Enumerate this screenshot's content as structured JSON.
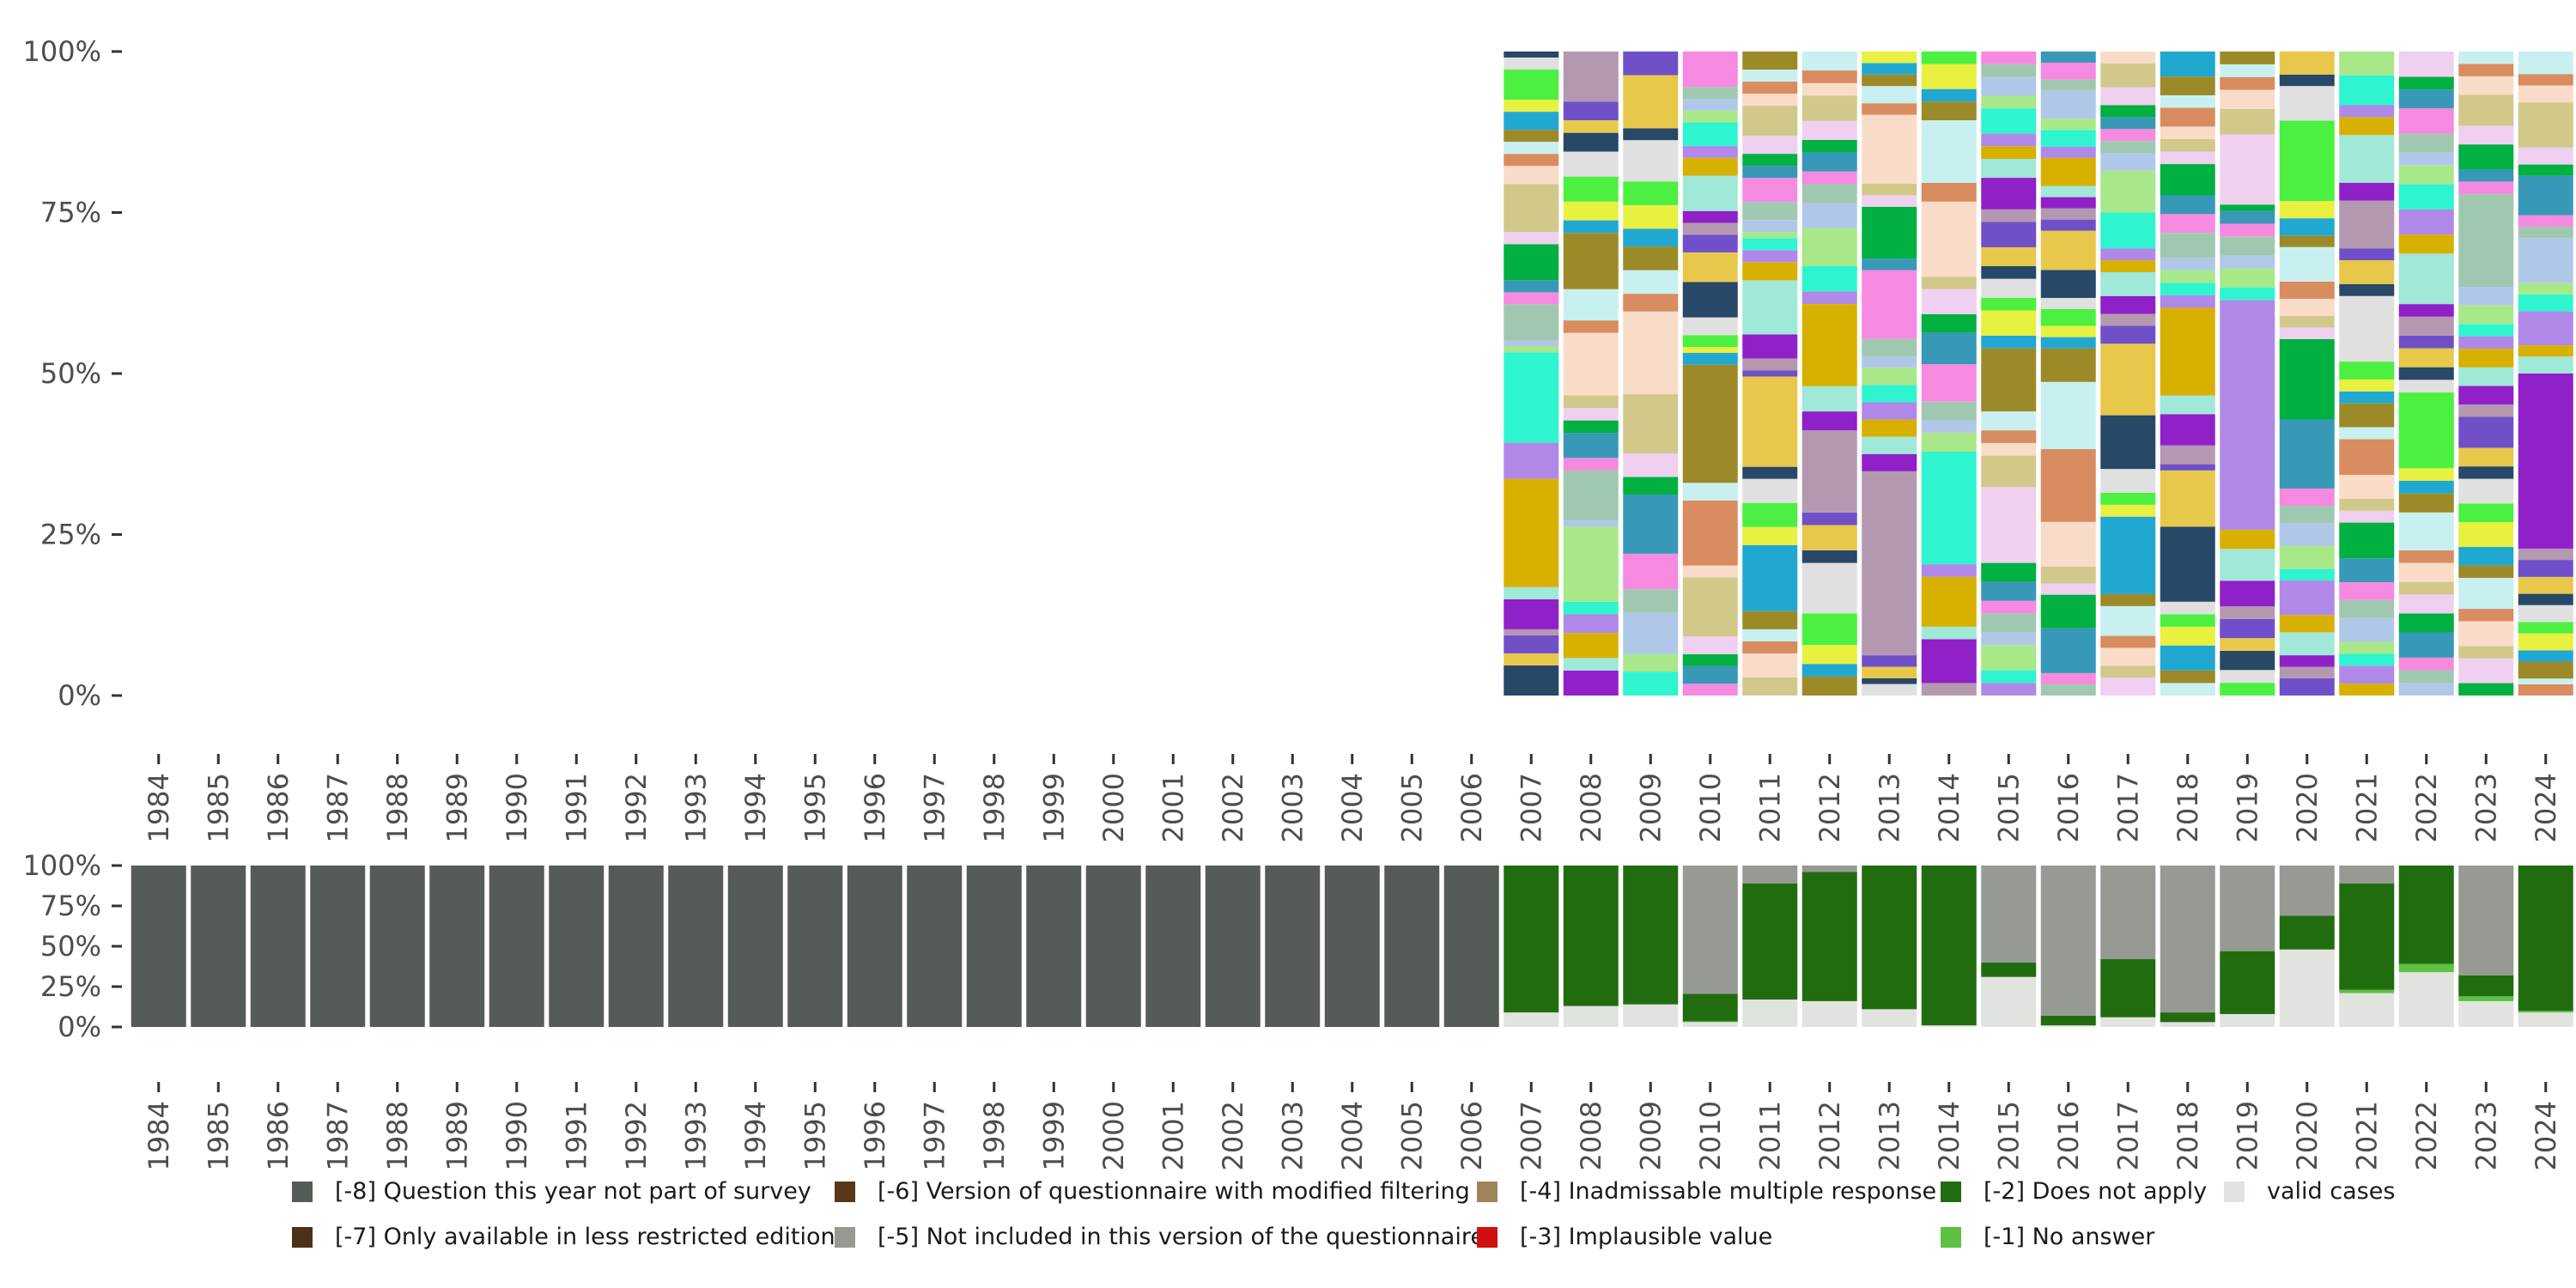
{
  "chart_data": [
    {
      "type": "bar",
      "stacked": true,
      "name": "distribution-of-valid-answers",
      "years": [
        "1984",
        "1985",
        "1986",
        "1987",
        "1988",
        "1989",
        "1990",
        "1991",
        "1992",
        "1993",
        "1994",
        "1995",
        "1996",
        "1997",
        "1998",
        "1999",
        "2000",
        "2001",
        "2002",
        "2003",
        "2004",
        "2005",
        "2006",
        "2007",
        "2008",
        "2009",
        "2010",
        "2011",
        "2012",
        "2013",
        "2014",
        "2015",
        "2016",
        "2017",
        "2018",
        "2019",
        "2020",
        "2021",
        "2022",
        "2023",
        "2024"
      ],
      "ylim": [
        0,
        100
      ],
      "yticks": [
        "0%",
        "25%",
        "50%",
        "75%",
        "100%"
      ],
      "ytick_values": [
        0,
        25,
        50,
        75,
        100
      ],
      "note": "Many answer categories; each year with valid cases is split into numerous small category shares summing to 100%. Years 1984-2006 contain no valid cases.",
      "palette": [
        "#2ef5d0",
        "#e8c84a",
        "#c8f0f0",
        "#f58ae0",
        "#a0e8d8",
        "#4cf040",
        "#d2c88a",
        "#a8e888",
        "#7050c8",
        "#9c8a28",
        "#3898b8",
        "#d8b000",
        "#e0e0e0",
        "#f8dcc8",
        "#b0c8e8",
        "#b498b0",
        "#20a8d0",
        "#00b040",
        "#b088e8",
        "#284868",
        "#d88c60",
        "#a0c8b0",
        "#9020c8",
        "#e8f040",
        "#f0d0f0"
      ],
      "series_shares": {
        "2007": [
          5,
          2,
          3,
          1,
          5,
          2,
          18,
          6,
          15,
          1,
          1,
          6,
          2,
          2,
          6,
          2,
          8,
          3,
          2,
          2,
          2,
          3,
          2,
          5,
          2,
          1
        ],
        "2008": [
          4,
          2,
          4,
          3,
          2,
          12,
          1,
          8,
          2,
          4,
          2,
          2,
          2,
          10,
          2,
          5,
          9,
          2,
          3,
          4,
          4,
          3,
          2,
          3,
          8
        ],
        "2009": [
          4,
          3,
          7,
          4,
          6,
          10,
          3,
          4,
          10,
          14,
          3,
          4,
          4,
          3,
          4,
          4,
          7,
          2,
          9,
          4
        ],
        "2010": [
          2,
          3,
          2,
          3,
          10,
          2,
          11,
          3,
          20,
          2,
          1,
          2,
          3,
          6,
          5,
          3,
          2,
          2,
          6,
          3,
          2,
          4,
          2,
          2,
          2,
          6
        ],
        "2011": [
          3,
          4,
          2,
          2,
          3,
          11,
          3,
          4,
          4,
          2,
          15,
          1,
          2,
          4,
          9,
          3,
          2,
          2,
          1,
          2,
          3,
          4,
          2,
          2,
          3,
          5,
          2,
          2,
          2,
          3
        ],
        "2012": [
          3,
          2,
          3,
          5,
          8,
          2,
          4,
          2,
          13,
          3,
          4,
          13,
          2,
          4,
          6,
          4,
          3,
          2,
          3,
          2,
          3,
          4,
          2,
          2,
          3
        ],
        "2013": [
          2,
          1,
          2,
          2,
          32,
          3,
          3,
          3,
          3,
          3,
          3,
          2,
          3,
          12,
          2,
          9,
          2,
          2,
          12,
          2,
          3,
          2,
          2,
          2
        ],
        "2014": [
          2,
          7,
          2,
          8,
          2,
          18,
          3,
          2,
          3,
          6,
          5,
          3,
          4,
          2,
          12,
          3,
          10,
          3,
          2,
          4,
          2
        ],
        "2015": [
          2,
          2,
          4,
          2,
          3,
          2,
          3,
          3,
          12,
          5,
          2,
          2,
          3,
          10,
          2,
          4,
          2,
          3,
          2,
          3,
          4,
          2,
          5,
          3,
          2,
          2,
          4,
          2,
          3,
          2,
          2
        ],
        "2016": [
          2,
          2,
          8,
          6,
          2,
          3,
          8,
          13,
          12,
          6,
          2,
          2,
          3,
          2,
          5,
          7,
          2,
          2,
          2,
          2,
          5,
          2,
          3,
          2,
          5,
          2,
          3,
          2
        ],
        "2017": [
          3,
          2,
          3,
          2,
          5,
          2,
          13,
          2,
          2,
          4,
          9,
          12,
          3,
          2,
          3,
          4,
          2,
          2,
          6,
          7,
          3,
          2,
          2,
          2,
          2,
          3,
          4,
          2
        ],
        "2018": [
          2,
          2,
          4,
          3,
          2,
          2,
          12,
          9,
          1,
          3,
          5,
          3,
          14,
          2,
          2,
          2,
          2,
          4,
          3,
          3,
          5,
          2,
          2,
          2,
          3,
          2,
          3,
          4
        ],
        "2019": [
          2,
          2,
          3,
          2,
          3,
          2,
          4,
          5,
          3,
          36,
          2,
          3,
          2,
          3,
          2,
          2,
          1,
          11,
          4,
          3,
          2,
          2,
          2
        ],
        "2020": [
          3,
          2,
          2,
          4,
          3,
          6,
          2,
          4,
          4,
          3,
          3,
          12,
          14,
          2,
          2,
          3,
          3,
          6,
          2,
          3,
          3,
          14,
          6,
          2,
          4
        ],
        "2021": [
          2,
          3,
          2,
          2,
          4,
          3,
          3,
          4,
          6,
          2,
          2,
          4,
          6,
          2,
          4,
          2,
          2,
          3,
          11,
          2,
          4,
          2,
          8,
          3,
          8,
          3,
          2,
          5,
          4
        ],
        "2022": [
          2,
          2,
          2,
          4,
          3,
          3,
          2,
          3,
          2,
          6,
          3,
          2,
          2,
          12,
          2,
          2,
          3,
          2,
          3,
          2,
          8,
          3,
          4,
          4,
          3,
          2,
          3,
          4,
          3,
          2,
          4
        ],
        "2023": [
          2,
          4,
          2,
          4,
          2,
          5,
          2,
          3,
          4,
          3,
          4,
          2,
          3,
          5,
          2,
          3,
          3,
          3,
          2,
          2,
          3,
          3,
          15,
          2,
          2,
          4,
          3,
          5,
          3,
          2,
          2
        ],
        "2024": [
          2,
          1,
          3,
          2,
          3,
          2,
          3,
          2,
          3,
          3,
          2,
          31,
          3,
          2,
          6,
          3,
          2,
          8,
          2,
          2,
          7,
          2,
          3,
          8,
          3,
          2,
          4
        ]
      }
    },
    {
      "type": "bar",
      "stacked": true,
      "name": "missing-value-categories",
      "years": [
        "1984",
        "1985",
        "1986",
        "1987",
        "1988",
        "1989",
        "1990",
        "1991",
        "1992",
        "1993",
        "1994",
        "1995",
        "1996",
        "1997",
        "1998",
        "1999",
        "2000",
        "2001",
        "2002",
        "2003",
        "2004",
        "2005",
        "2006",
        "2007",
        "2008",
        "2009",
        "2010",
        "2011",
        "2012",
        "2013",
        "2014",
        "2015",
        "2016",
        "2017",
        "2018",
        "2019",
        "2020",
        "2021",
        "2022",
        "2023",
        "2024"
      ],
      "ylim": [
        0,
        100
      ],
      "yticks": [
        "0%",
        "25%",
        "50%",
        "75%",
        "100%"
      ],
      "ytick_values": [
        0,
        25,
        50,
        75,
        100
      ],
      "categories": [
        {
          "key": "m8",
          "label": "[-8] Question this year not part of survey",
          "color": "#555b55"
        },
        {
          "key": "m7",
          "label": "[-7] Only available in less restricted edition",
          "color": "#4a3118"
        },
        {
          "key": "m6",
          "label": "[-6] Version of questionnaire with modified filtering",
          "color": "#583818"
        },
        {
          "key": "m5",
          "label": "[-5] Not included in this version of the questionnaire",
          "color": "#969a93"
        },
        {
          "key": "m4",
          "label": "[-4] Inadmissable multiple response",
          "color": "#a0845c"
        },
        {
          "key": "m3",
          "label": "[-3] Implausible value",
          "color": "#d01010"
        },
        {
          "key": "m2",
          "label": "[-2] Does not apply",
          "color": "#226c10"
        },
        {
          "key": "m1",
          "label": "[-1] No answer",
          "color": "#5cc040"
        },
        {
          "key": "valid",
          "label": "valid cases",
          "color": "#e0e3de"
        }
      ],
      "stack_order": [
        "valid",
        "m1",
        "m2",
        "m3",
        "m4",
        "m5",
        "m6",
        "m7",
        "m8"
      ],
      "values": {
        "1984": {
          "m8": 100
        },
        "1985": {
          "m8": 100
        },
        "1986": {
          "m8": 100
        },
        "1987": {
          "m8": 100
        },
        "1988": {
          "m8": 100
        },
        "1989": {
          "m8": 100
        },
        "1990": {
          "m8": 100
        },
        "1991": {
          "m8": 100
        },
        "1992": {
          "m8": 100
        },
        "1993": {
          "m8": 100
        },
        "1994": {
          "m8": 100
        },
        "1995": {
          "m8": 100
        },
        "1996": {
          "m8": 100
        },
        "1997": {
          "m8": 100
        },
        "1998": {
          "m8": 100
        },
        "1999": {
          "m8": 100
        },
        "2000": {
          "m8": 100
        },
        "2001": {
          "m8": 100
        },
        "2002": {
          "m8": 100
        },
        "2003": {
          "m8": 100
        },
        "2004": {
          "m8": 100
        },
        "2005": {
          "m8": 100
        },
        "2006": {
          "m8": 100
        },
        "2007": {
          "valid": 9,
          "m2": 91
        },
        "2008": {
          "valid": 13,
          "m2": 87
        },
        "2009": {
          "valid": 14,
          "m2": 86
        },
        "2010": {
          "valid": 3,
          "m1": 0.5,
          "m2": 17,
          "m5": 79.5
        },
        "2011": {
          "valid": 17,
          "m2": 72,
          "m5": 11
        },
        "2012": {
          "valid": 16,
          "m2": 80,
          "m5": 4
        },
        "2013": {
          "valid": 11,
          "m2": 89
        },
        "2014": {
          "valid": 1,
          "m2": 99
        },
        "2015": {
          "valid": 31,
          "m2": 9,
          "m5": 60
        },
        "2016": {
          "valid": 1,
          "m2": 6,
          "m5": 93
        },
        "2017": {
          "valid": 6,
          "m2": 36,
          "m5": 58
        },
        "2018": {
          "valid": 3,
          "m2": 6,
          "m5": 91
        },
        "2019": {
          "valid": 8,
          "m2": 39,
          "m5": 53
        },
        "2020": {
          "valid": 48,
          "m2": 21,
          "m5": 31
        },
        "2021": {
          "valid": 21,
          "m1": 2,
          "m2": 66,
          "m5": 11
        },
        "2022": {
          "valid": 34,
          "m1": 5,
          "m2": 61
        },
        "2023": {
          "valid": 16,
          "m1": 3,
          "m2": 13,
          "m5": 68
        },
        "2024": {
          "valid": 9,
          "m1": 1,
          "m2": 90
        }
      }
    }
  ],
  "legend": {
    "items": [
      {
        "label": "[-8] Question this year not part of survey",
        "color": "#555b55"
      },
      {
        "label": "[-7] Only available in less restricted edition",
        "color": "#4a3118"
      },
      {
        "label": "[-6] Version of questionnaire with modified filtering",
        "color": "#583818"
      },
      {
        "label": "[-5] Not included in this version of the questionnaire",
        "color": "#969a93"
      },
      {
        "label": "[-4] Inadmissable multiple response",
        "color": "#a0845c"
      },
      {
        "label": "[-3] Implausible value",
        "color": "#d01010"
      },
      {
        "label": "[-2] Does not apply",
        "color": "#226c10"
      },
      {
        "label": "[-1] No answer",
        "color": "#5cc040"
      },
      {
        "label": "valid cases",
        "color": "#e0e3de"
      }
    ]
  }
}
